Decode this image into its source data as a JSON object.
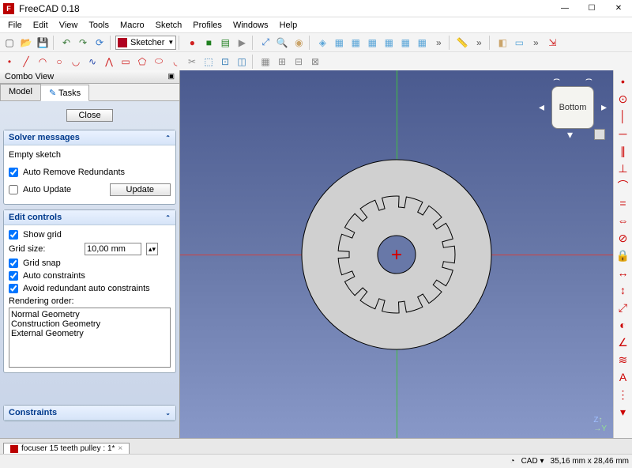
{
  "title": "FreeCAD 0.18",
  "window_buttons": {
    "min": "—",
    "max": "☐",
    "close": "✕"
  },
  "menus": [
    "File",
    "Edit",
    "View",
    "Tools",
    "Macro",
    "Sketch",
    "Profiles",
    "Windows",
    "Help"
  ],
  "workbench": {
    "label": "Sketcher",
    "icon_color": "#b00020"
  },
  "toolbar1": [
    {
      "n": "new",
      "g": "▢",
      "c": "#555"
    },
    {
      "n": "open",
      "g": "📂",
      "c": "#caa46a"
    },
    {
      "n": "save",
      "g": "💾",
      "c": "#3a6fb7"
    },
    {
      "sep": true
    },
    {
      "n": "undo",
      "g": "↶",
      "c": "#3a7a3a"
    },
    {
      "n": "redo",
      "g": "↷",
      "c": "#3a7a3a"
    },
    {
      "n": "refresh",
      "g": "⟳",
      "c": "#2a72c8"
    },
    {
      "sep": true
    },
    {
      "n": "wb",
      "wb": true
    },
    {
      "sep": true
    },
    {
      "n": "rec",
      "g": "●",
      "c": "#d02020"
    },
    {
      "n": "stop",
      "g": "■",
      "c": "#208020"
    },
    {
      "n": "macros",
      "g": "▤",
      "c": "#208020"
    },
    {
      "n": "play",
      "g": "▶",
      "c": "#888"
    },
    {
      "sep": true
    },
    {
      "n": "fit",
      "g": "⤢",
      "c": "#2a72c8"
    },
    {
      "n": "zoom-sel",
      "g": "🔍",
      "c": "#2a72c8"
    },
    {
      "n": "draw-style",
      "g": "◉",
      "c": "#caa46a"
    },
    {
      "sep": true
    },
    {
      "n": "iso",
      "g": "◈",
      "c": "#5aa5d8"
    },
    {
      "n": "front",
      "g": "▦",
      "c": "#5aa5d8"
    },
    {
      "n": "top",
      "g": "▦",
      "c": "#5aa5d8"
    },
    {
      "n": "right",
      "g": "▦",
      "c": "#5aa5d8"
    },
    {
      "n": "rear",
      "g": "▦",
      "c": "#5aa5d8"
    },
    {
      "n": "bottom",
      "g": "▦",
      "c": "#5aa5d8"
    },
    {
      "n": "left",
      "g": "▦",
      "c": "#5aa5d8"
    },
    {
      "n": "more1",
      "g": "»",
      "c": "#555"
    },
    {
      "sep": true
    },
    {
      "n": "measure",
      "g": "📏",
      "c": "#caa46a"
    },
    {
      "n": "more2",
      "g": "»",
      "c": "#555"
    },
    {
      "sep": true
    },
    {
      "n": "part",
      "g": "◧",
      "c": "#caa46a"
    },
    {
      "n": "group",
      "g": "▭",
      "c": "#5aa5d8"
    },
    {
      "n": "more3",
      "g": "»",
      "c": "#555"
    },
    {
      "n": "link",
      "g": "⇲",
      "c": "#d02020"
    }
  ],
  "toolbar2": [
    {
      "n": "point",
      "g": "•",
      "c": "#d02020"
    },
    {
      "n": "line",
      "g": "╱",
      "c": "#d02020"
    },
    {
      "n": "arc",
      "g": "◠",
      "c": "#d02020"
    },
    {
      "n": "circle",
      "g": "○",
      "c": "#d02020"
    },
    {
      "n": "conic",
      "g": "◡",
      "c": "#d02020"
    },
    {
      "n": "bspline",
      "g": "∿",
      "c": "#2244aa"
    },
    {
      "n": "polyline",
      "g": "⋀",
      "c": "#d02020"
    },
    {
      "n": "rect",
      "g": "▭",
      "c": "#d02020"
    },
    {
      "n": "polygon",
      "g": "⬠",
      "c": "#d02020"
    },
    {
      "n": "slot",
      "g": "⬭",
      "c": "#d02020"
    },
    {
      "n": "fillet",
      "g": "◟",
      "c": "#d02020"
    },
    {
      "n": "trim",
      "g": "✂",
      "c": "#888"
    },
    {
      "n": "external",
      "g": "⬚",
      "c": "#3a7fb7"
    },
    {
      "n": "carbon",
      "g": "⊡",
      "c": "#3a7fb7"
    },
    {
      "n": "construction",
      "g": "◫",
      "c": "#3a7fb7"
    },
    {
      "sep": true
    },
    {
      "n": "grid1",
      "g": "▦",
      "c": "#888"
    },
    {
      "n": "grid2",
      "g": "⊞",
      "c": "#888"
    },
    {
      "n": "grid3",
      "g": "⊟",
      "c": "#888"
    },
    {
      "n": "grid4",
      "g": "⊠",
      "c": "#888"
    }
  ],
  "combo": {
    "title": "Combo View",
    "tabs": [
      "Model",
      "Tasks"
    ],
    "active_tab": 1,
    "close_btn": "Close"
  },
  "solver": {
    "title": "Solver messages",
    "status": "Empty sketch",
    "auto_remove": {
      "label": "Auto Remove Redundants",
      "checked": true
    },
    "auto_update": {
      "label": "Auto Update",
      "checked": false
    },
    "update_btn": "Update"
  },
  "edit": {
    "title": "Edit controls",
    "show_grid": {
      "label": "Show grid",
      "checked": true
    },
    "grid_size": {
      "label": "Grid size:",
      "value": "10,00 mm"
    },
    "grid_snap": {
      "label": "Grid snap",
      "checked": true
    },
    "auto_constraints": {
      "label": "Auto constraints",
      "checked": true
    },
    "avoid_redundant": {
      "label": "Avoid redundant auto constraints",
      "checked": true
    },
    "render_label": "Rendering order:",
    "render_items": [
      "Normal Geometry",
      "Construction Geometry",
      "External Geometry"
    ]
  },
  "constraints": {
    "title": "Constraints"
  },
  "viewport": {
    "bg_top": "#4a5a8f",
    "bg_bot": "#8898c8",
    "axis_x_color": "#d04040",
    "axis_y_color": "#40c040",
    "cube_label": "Bottom",
    "gear": {
      "outer_r": 120,
      "inner_r": 74,
      "hole_r": 24,
      "teeth": 15,
      "tooth_h": 14,
      "fill": "#d0d0d0",
      "stroke": "#000"
    }
  },
  "right_tools": [
    {
      "n": "c-coincident",
      "g": "•"
    },
    {
      "n": "c-point-on",
      "g": "⊙"
    },
    {
      "n": "c-vertical",
      "g": "│"
    },
    {
      "n": "c-horizontal",
      "g": "─"
    },
    {
      "n": "c-parallel",
      "g": "∥"
    },
    {
      "n": "c-perp",
      "g": "⊥"
    },
    {
      "n": "c-tangent",
      "g": "⌒"
    },
    {
      "n": "c-equal",
      "g": "="
    },
    {
      "n": "c-symm",
      "g": "⇔"
    },
    {
      "n": "c-block",
      "g": "⊘"
    },
    {
      "n": "c-lock",
      "g": "🔒"
    },
    {
      "n": "c-hdist",
      "g": "↔"
    },
    {
      "n": "c-vdist",
      "g": "↕"
    },
    {
      "n": "c-dist",
      "g": "⤢"
    },
    {
      "n": "c-radius",
      "g": "◐"
    },
    {
      "n": "c-angle",
      "g": "∠"
    },
    {
      "n": "c-snell",
      "g": "≋"
    },
    {
      "n": "c-internal",
      "g": "A"
    },
    {
      "n": "c-more1",
      "g": "⋮"
    },
    {
      "n": "c-more2",
      "g": "▾"
    }
  ],
  "doc_tab": "focuser 15 teeth pulley : 1*",
  "status": {
    "nav": "CAD",
    "coords": "35,16 mm x 28,46 mm"
  }
}
